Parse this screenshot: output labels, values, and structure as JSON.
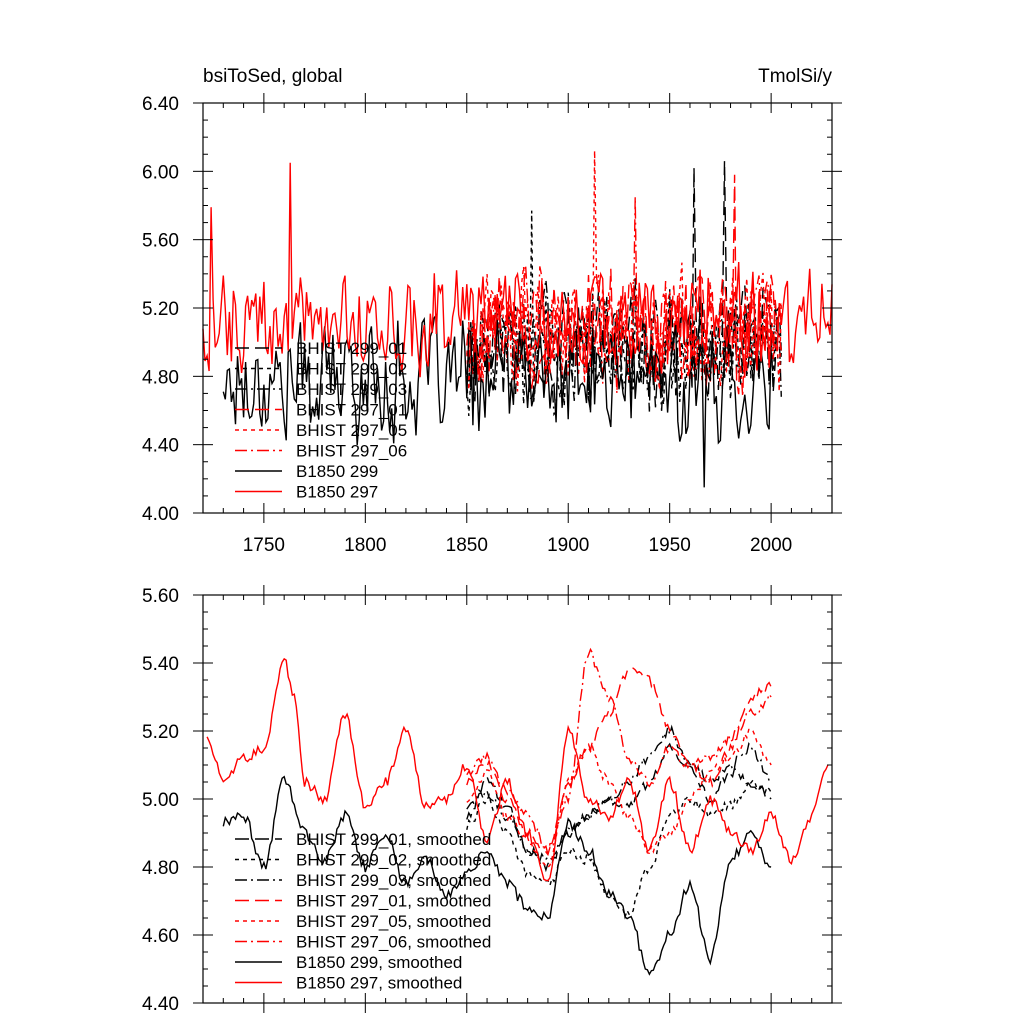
{
  "chart_data": [
    {
      "type": "line",
      "title_left": "bsiToSed, global",
      "title_right": "TmolSi/y",
      "xlim": [
        1720,
        2030
      ],
      "ylim": [
        4.0,
        6.4
      ],
      "x_ticks": [
        1750,
        1800,
        1850,
        1900,
        1950,
        2000
      ],
      "x_tick_labels": [
        "1750",
        "1800",
        "1850",
        "1900",
        "1950",
        "2000"
      ],
      "y_ticks": [
        4.0,
        4.4,
        4.8,
        5.2,
        5.6,
        6.0,
        6.4
      ],
      "y_tick_labels": [
        "4.00",
        "4.40",
        "4.80",
        "5.20",
        "5.60",
        "6.00",
        "6.40"
      ],
      "grid": false,
      "legend_position": "lower-left",
      "series": [
        {
          "name": "BHIST 299_01",
          "color": "#000000",
          "dash": "long",
          "x_range": [
            1850,
            2005
          ],
          "mean": 4.98,
          "amp": 0.34,
          "seed": 11,
          "spikes": [
            [
              1962,
              6.02
            ],
            [
              1977,
              6.06
            ]
          ]
        },
        {
          "name": "BHIST 299_02",
          "color": "#000000",
          "dash": "short",
          "x_range": [
            1850,
            2005
          ],
          "mean": 4.93,
          "amp": 0.34,
          "seed": 12,
          "spikes": [
            [
              1882,
              5.77
            ]
          ]
        },
        {
          "name": "BHIST 299_03",
          "color": "#000000",
          "dash": "dashdot",
          "x_range": [
            1850,
            2005
          ],
          "mean": 4.95,
          "amp": 0.34,
          "seed": 13,
          "spikes": []
        },
        {
          "name": "BHIST 297_01",
          "color": "#ff0000",
          "dash": "long",
          "x_range": [
            1850,
            2005
          ],
          "mean": 5.08,
          "amp": 0.36,
          "seed": 14,
          "spikes": [
            [
              1982,
              5.98
            ]
          ]
        },
        {
          "name": "BHIST 297_05",
          "color": "#ff0000",
          "dash": "short",
          "x_range": [
            1850,
            2005
          ],
          "mean": 5.05,
          "amp": 0.36,
          "seed": 15,
          "spikes": [
            [
              1913,
              6.12
            ]
          ]
        },
        {
          "name": "BHIST 297_06",
          "color": "#ff0000",
          "dash": "dashdot",
          "x_range": [
            1850,
            2005
          ],
          "mean": 5.07,
          "amp": 0.36,
          "seed": 16,
          "spikes": [
            [
              1933,
              5.85
            ]
          ]
        },
        {
          "name": "B1850 299",
          "color": "#000000",
          "dash": "solid",
          "x_range": [
            1730,
            2000
          ],
          "mean": 4.78,
          "amp": 0.36,
          "seed": 17,
          "spikes": [
            [
              1967,
              4.15
            ]
          ]
        },
        {
          "name": "B1850 297",
          "color": "#ff0000",
          "dash": "solid",
          "x_range": [
            1720,
            2030
          ],
          "mean": 5.12,
          "amp": 0.3,
          "seed": 18,
          "spikes": [
            [
              1763,
              6.05
            ],
            [
              1724,
              5.79
            ]
          ]
        }
      ]
    },
    {
      "type": "line",
      "xlim": [
        1720,
        2030
      ],
      "ylim": [
        4.4,
        5.6
      ],
      "x_ticks": [
        1750,
        1800,
        1850,
        1900,
        1950,
        2000
      ],
      "y_ticks": [
        4.4,
        4.6,
        4.8,
        5.0,
        5.2,
        5.4,
        5.6
      ],
      "y_tick_labels": [
        "4.40",
        "4.60",
        "4.80",
        "5.00",
        "5.20",
        "5.40",
        "5.60"
      ],
      "grid": false,
      "legend_position": "lower-left",
      "series": [
        {
          "name": "BHIST 299_01, smoothed",
          "color": "#000000",
          "dash": "long",
          "x": [
            1850,
            1860,
            1870,
            1880,
            1890,
            1900,
            1910,
            1920,
            1930,
            1940,
            1950,
            1960,
            1970,
            1980,
            1990,
            2000
          ],
          "y": [
            4.95,
            5.05,
            4.98,
            4.85,
            4.8,
            4.9,
            4.95,
            5.0,
            4.98,
            5.05,
            5.15,
            5.1,
            5.0,
            5.08,
            5.05,
            5.0
          ]
        },
        {
          "name": "BHIST 299_02, smoothed",
          "color": "#000000",
          "dash": "short",
          "x": [
            1850,
            1860,
            1870,
            1880,
            1890,
            1900,
            1910,
            1920,
            1930,
            1940,
            1950,
            1960,
            1970,
            1980,
            1990,
            2000
          ],
          "y": [
            4.92,
            5.0,
            4.9,
            4.78,
            4.75,
            4.85,
            4.82,
            4.72,
            4.66,
            4.8,
            4.95,
            5.0,
            4.95,
            4.98,
            5.05,
            5.02
          ]
        },
        {
          "name": "BHIST 299_03, smoothed",
          "color": "#000000",
          "dash": "dashdot",
          "x": [
            1850,
            1860,
            1870,
            1880,
            1890,
            1900,
            1910,
            1920,
            1930,
            1940,
            1950,
            1960,
            1970,
            1980,
            1990,
            2000
          ],
          "y": [
            4.98,
            5.02,
            4.95,
            4.85,
            4.82,
            4.9,
            4.95,
            5.0,
            5.05,
            5.12,
            5.2,
            5.1,
            5.05,
            5.1,
            5.15,
            5.05
          ]
        },
        {
          "name": "BHIST 297_01, smoothed",
          "color": "#ff0000",
          "dash": "long",
          "x": [
            1850,
            1860,
            1870,
            1880,
            1890,
            1900,
            1910,
            1920,
            1930,
            1940,
            1950,
            1960,
            1970,
            1980,
            1990,
            2000
          ],
          "y": [
            5.05,
            5.1,
            5.0,
            4.9,
            4.85,
            5.05,
            5.15,
            5.25,
            5.38,
            5.35,
            5.2,
            5.1,
            5.05,
            5.15,
            5.3,
            5.33
          ]
        },
        {
          "name": "BHIST 297_05, smoothed",
          "color": "#ff0000",
          "dash": "short",
          "x": [
            1850,
            1860,
            1870,
            1880,
            1890,
            1900,
            1910,
            1920,
            1930,
            1940,
            1950,
            1960,
            1970,
            1980,
            1990,
            2000
          ],
          "y": [
            5.0,
            5.08,
            4.95,
            4.88,
            4.8,
            5.05,
            5.15,
            5.05,
            4.95,
            4.85,
            4.9,
            5.0,
            5.08,
            5.12,
            5.2,
            5.1
          ]
        },
        {
          "name": "BHIST 297_06, smoothed",
          "color": "#ff0000",
          "dash": "dashdot",
          "x": [
            1850,
            1860,
            1870,
            1880,
            1890,
            1900,
            1910,
            1920,
            1930,
            1940,
            1950,
            1960,
            1970,
            1980,
            1990,
            2000
          ],
          "y": [
            5.08,
            5.12,
            5.02,
            4.95,
            4.85,
            5.0,
            5.43,
            5.3,
            5.12,
            5.05,
            5.15,
            5.1,
            5.12,
            5.18,
            5.25,
            5.3
          ]
        },
        {
          "name": "B1850 299, smoothed",
          "color": "#000000",
          "dash": "solid",
          "x": [
            1730,
            1740,
            1750,
            1760,
            1770,
            1780,
            1790,
            1800,
            1810,
            1820,
            1830,
            1840,
            1850,
            1860,
            1870,
            1880,
            1890,
            1900,
            1910,
            1920,
            1930,
            1940,
            1950,
            1960,
            1970,
            1980,
            1990,
            2000
          ],
          "y": [
            4.93,
            4.95,
            4.8,
            5.06,
            4.9,
            4.82,
            4.95,
            4.8,
            4.9,
            4.75,
            4.82,
            4.72,
            4.78,
            4.85,
            4.75,
            4.68,
            4.65,
            4.93,
            4.85,
            4.72,
            4.66,
            4.48,
            4.6,
            4.75,
            4.53,
            4.82,
            4.9,
            4.8
          ]
        },
        {
          "name": "B1850 297, smoothed",
          "color": "#ff0000",
          "dash": "solid",
          "x": [
            1722,
            1730,
            1740,
            1750,
            1760,
            1765,
            1770,
            1780,
            1790,
            1800,
            1810,
            1820,
            1830,
            1840,
            1850,
            1860,
            1870,
            1880,
            1890,
            1900,
            1910,
            1920,
            1930,
            1940,
            1950,
            1960,
            1970,
            1980,
            1990,
            2000,
            2010,
            2020,
            2028
          ],
          "y": [
            5.19,
            5.05,
            5.12,
            5.15,
            5.41,
            5.3,
            5.05,
            5.0,
            5.25,
            4.98,
            5.05,
            5.2,
            4.98,
            5.0,
            5.1,
            4.88,
            5.05,
            4.9,
            4.75,
            5.2,
            5.0,
            4.95,
            5.05,
            4.85,
            5.05,
            4.85,
            5.0,
            4.9,
            4.85,
            4.95,
            4.82,
            4.95,
            5.1
          ]
        }
      ]
    }
  ]
}
